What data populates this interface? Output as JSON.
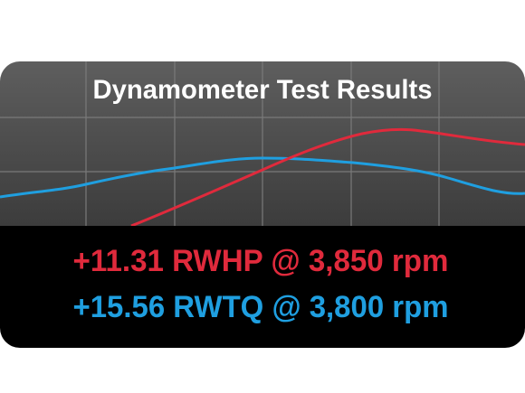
{
  "title": "Dynamometer Test Results",
  "results": [
    "+11.31 RWHP @ 3,850 rpm",
    "+15.56 RWTQ @ 3,800 rpm"
  ]
}
